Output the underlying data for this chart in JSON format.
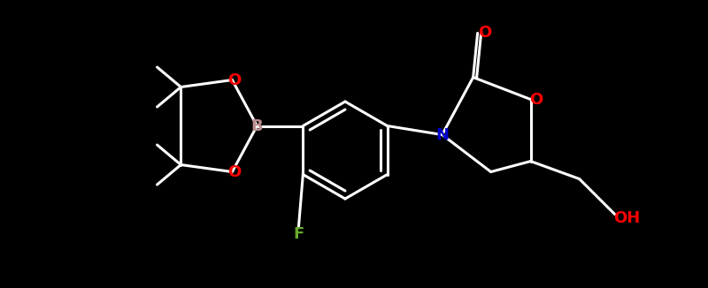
{
  "bg_color": "#000000",
  "bond_color": "#ffffff",
  "bond_width": 2.2,
  "atom_colors": {
    "O": "#ff0000",
    "N": "#0000cd",
    "B": "#bc8f8f",
    "F": "#6aaa2a",
    "OH": "#ff0000",
    "C": "#ffffff"
  },
  "fig_width": 8.0,
  "fig_height": 3.26,
  "dpi": 100
}
